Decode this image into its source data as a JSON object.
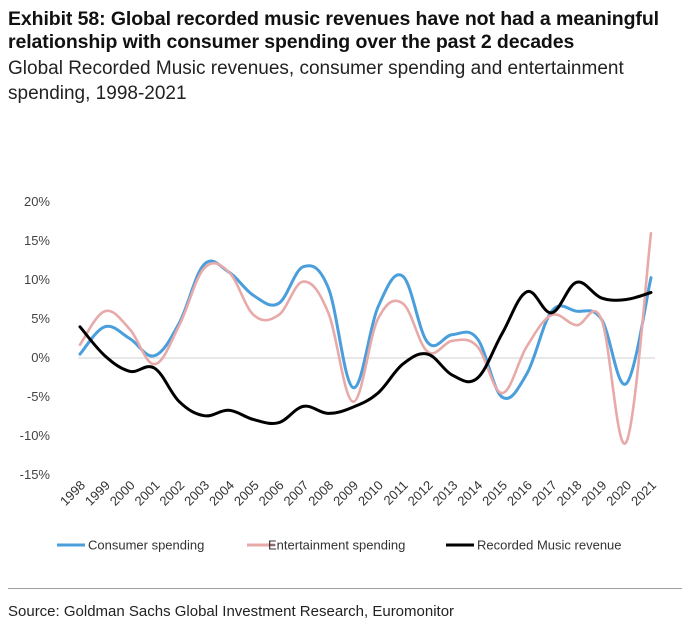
{
  "header": {
    "title": "Exhibit 58: Global recorded music revenues have not had a meaningful relationship with consumer spending over the past 2 decades",
    "subtitle": "Global Recorded Music revenues, consumer spending and entertainment spending, 1998-2021"
  },
  "source": "Source: Goldman Sachs Global Investment Research, Euromonitor",
  "chart_data": {
    "type": "line",
    "x": [
      "1998",
      "1999",
      "2000",
      "2001",
      "2002",
      "2003",
      "2004",
      "2005",
      "2006",
      "2007",
      "2008",
      "2009",
      "2010",
      "2011",
      "2012",
      "2013",
      "2014",
      "2015",
      "2016",
      "2017",
      "2018",
      "2019",
      "2020",
      "2021"
    ],
    "ylim": [
      -15,
      20
    ],
    "yticks": [
      -15,
      -10,
      -5,
      0,
      5,
      10,
      15,
      20
    ],
    "ytick_labels": [
      "-15%",
      "-10%",
      "-5%",
      "0%",
      "5%",
      "10%",
      "15%",
      "20%"
    ],
    "grid": false,
    "legend_position": "bottom",
    "series": [
      {
        "name": "Consumer spending",
        "color": "#4a9edb",
        "values": [
          0.5,
          4.0,
          2.5,
          0.3,
          4.5,
          12.0,
          11.0,
          8.0,
          7.0,
          11.7,
          9.0,
          -3.8,
          6.5,
          10.5,
          2.0,
          3.0,
          2.5,
          -5.0,
          -2.0,
          6.0,
          6.0,
          5.0,
          -3.3,
          10.3
        ]
      },
      {
        "name": "Entertainment spending",
        "color": "#e8a9a9",
        "values": [
          1.7,
          6.0,
          3.7,
          -0.8,
          4.2,
          11.5,
          11.0,
          5.5,
          5.5,
          9.8,
          5.8,
          -5.6,
          5.0,
          7.0,
          0.8,
          2.2,
          1.5,
          -4.5,
          1.5,
          5.5,
          4.2,
          5.0,
          -10.8,
          16.0
        ]
      },
      {
        "name": "Recorded Music revenue",
        "color": "#000000",
        "values": [
          4.0,
          0.3,
          -1.7,
          -1.3,
          -5.6,
          -7.4,
          -6.7,
          -7.9,
          -8.3,
          -6.2,
          -7.1,
          -6.3,
          -4.5,
          -0.8,
          0.5,
          -2.2,
          -2.6,
          3.1,
          8.5,
          5.8,
          9.7,
          7.7,
          7.5,
          8.4
        ]
      }
    ]
  }
}
